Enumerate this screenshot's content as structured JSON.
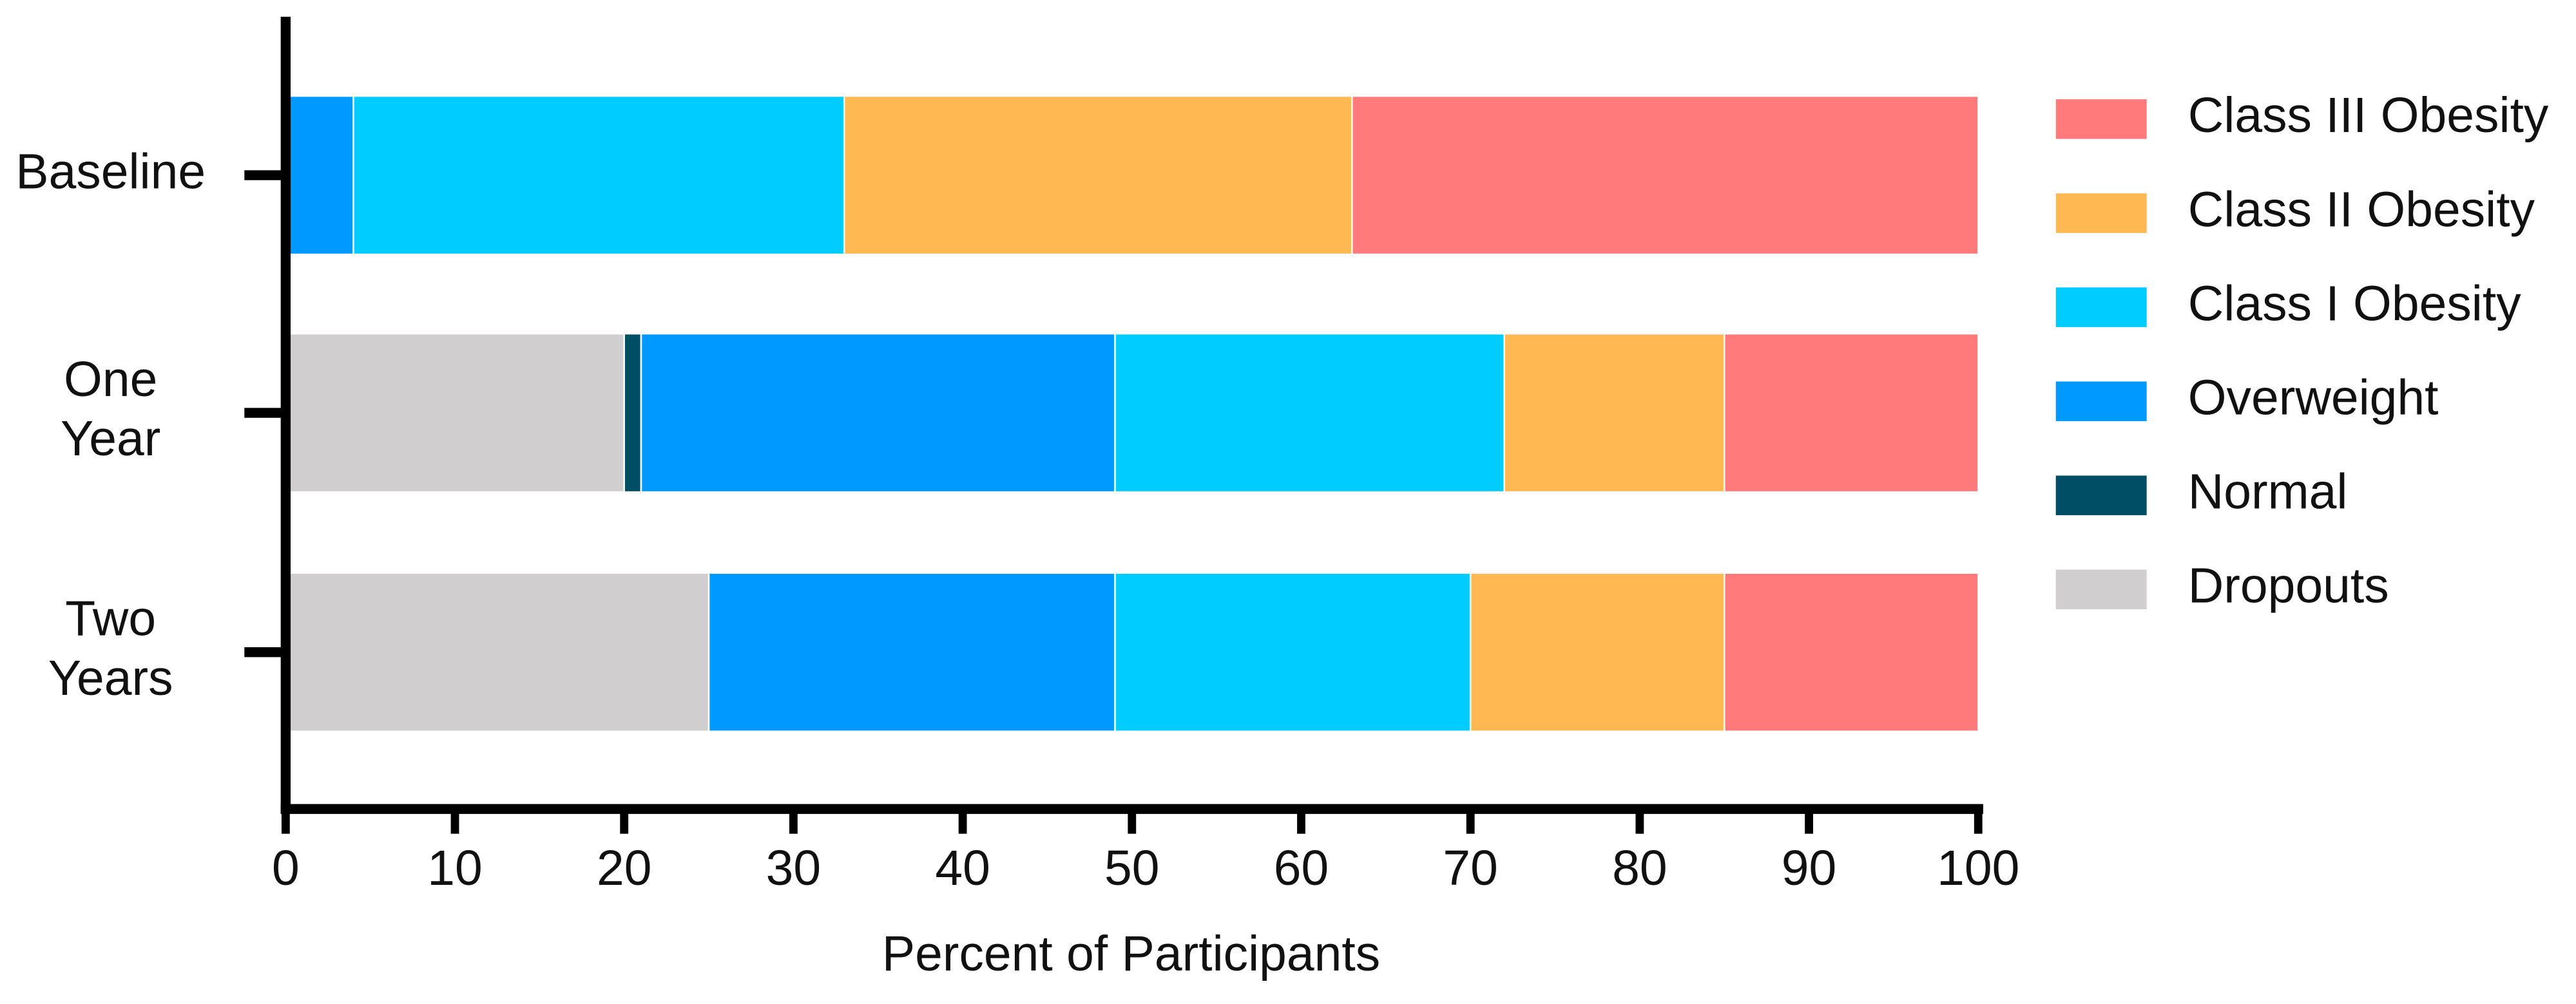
{
  "chart_data": {
    "type": "stacked-horizontal-bar",
    "categories": [
      "Baseline",
      "One Year",
      "Two Years"
    ],
    "series": [
      {
        "name": "Dropouts",
        "color": "#d0cece",
        "values": [
          0,
          20,
          25
        ]
      },
      {
        "name": "Normal",
        "color": "#004d66",
        "values": [
          0,
          1,
          0
        ]
      },
      {
        "name": "Overweight",
        "color": "#0099ff",
        "values": [
          4,
          28,
          24
        ]
      },
      {
        "name": "Class I Obesity",
        "color": "#00ccff",
        "values": [
          29,
          23,
          21
        ]
      },
      {
        "name": "Class II Obesity",
        "color": "#ffb852",
        "values": [
          30,
          13,
          15
        ]
      },
      {
        "name": "Class III Obesity",
        "color": "#ff7a7a",
        "values": [
          37,
          15,
          15
        ]
      }
    ],
    "xlabel": "Percent of Participants",
    "xlim": [
      0,
      100
    ],
    "xticks": [
      0,
      10,
      20,
      30,
      40,
      50,
      60,
      70,
      80,
      90,
      100
    ],
    "legend": "right"
  }
}
